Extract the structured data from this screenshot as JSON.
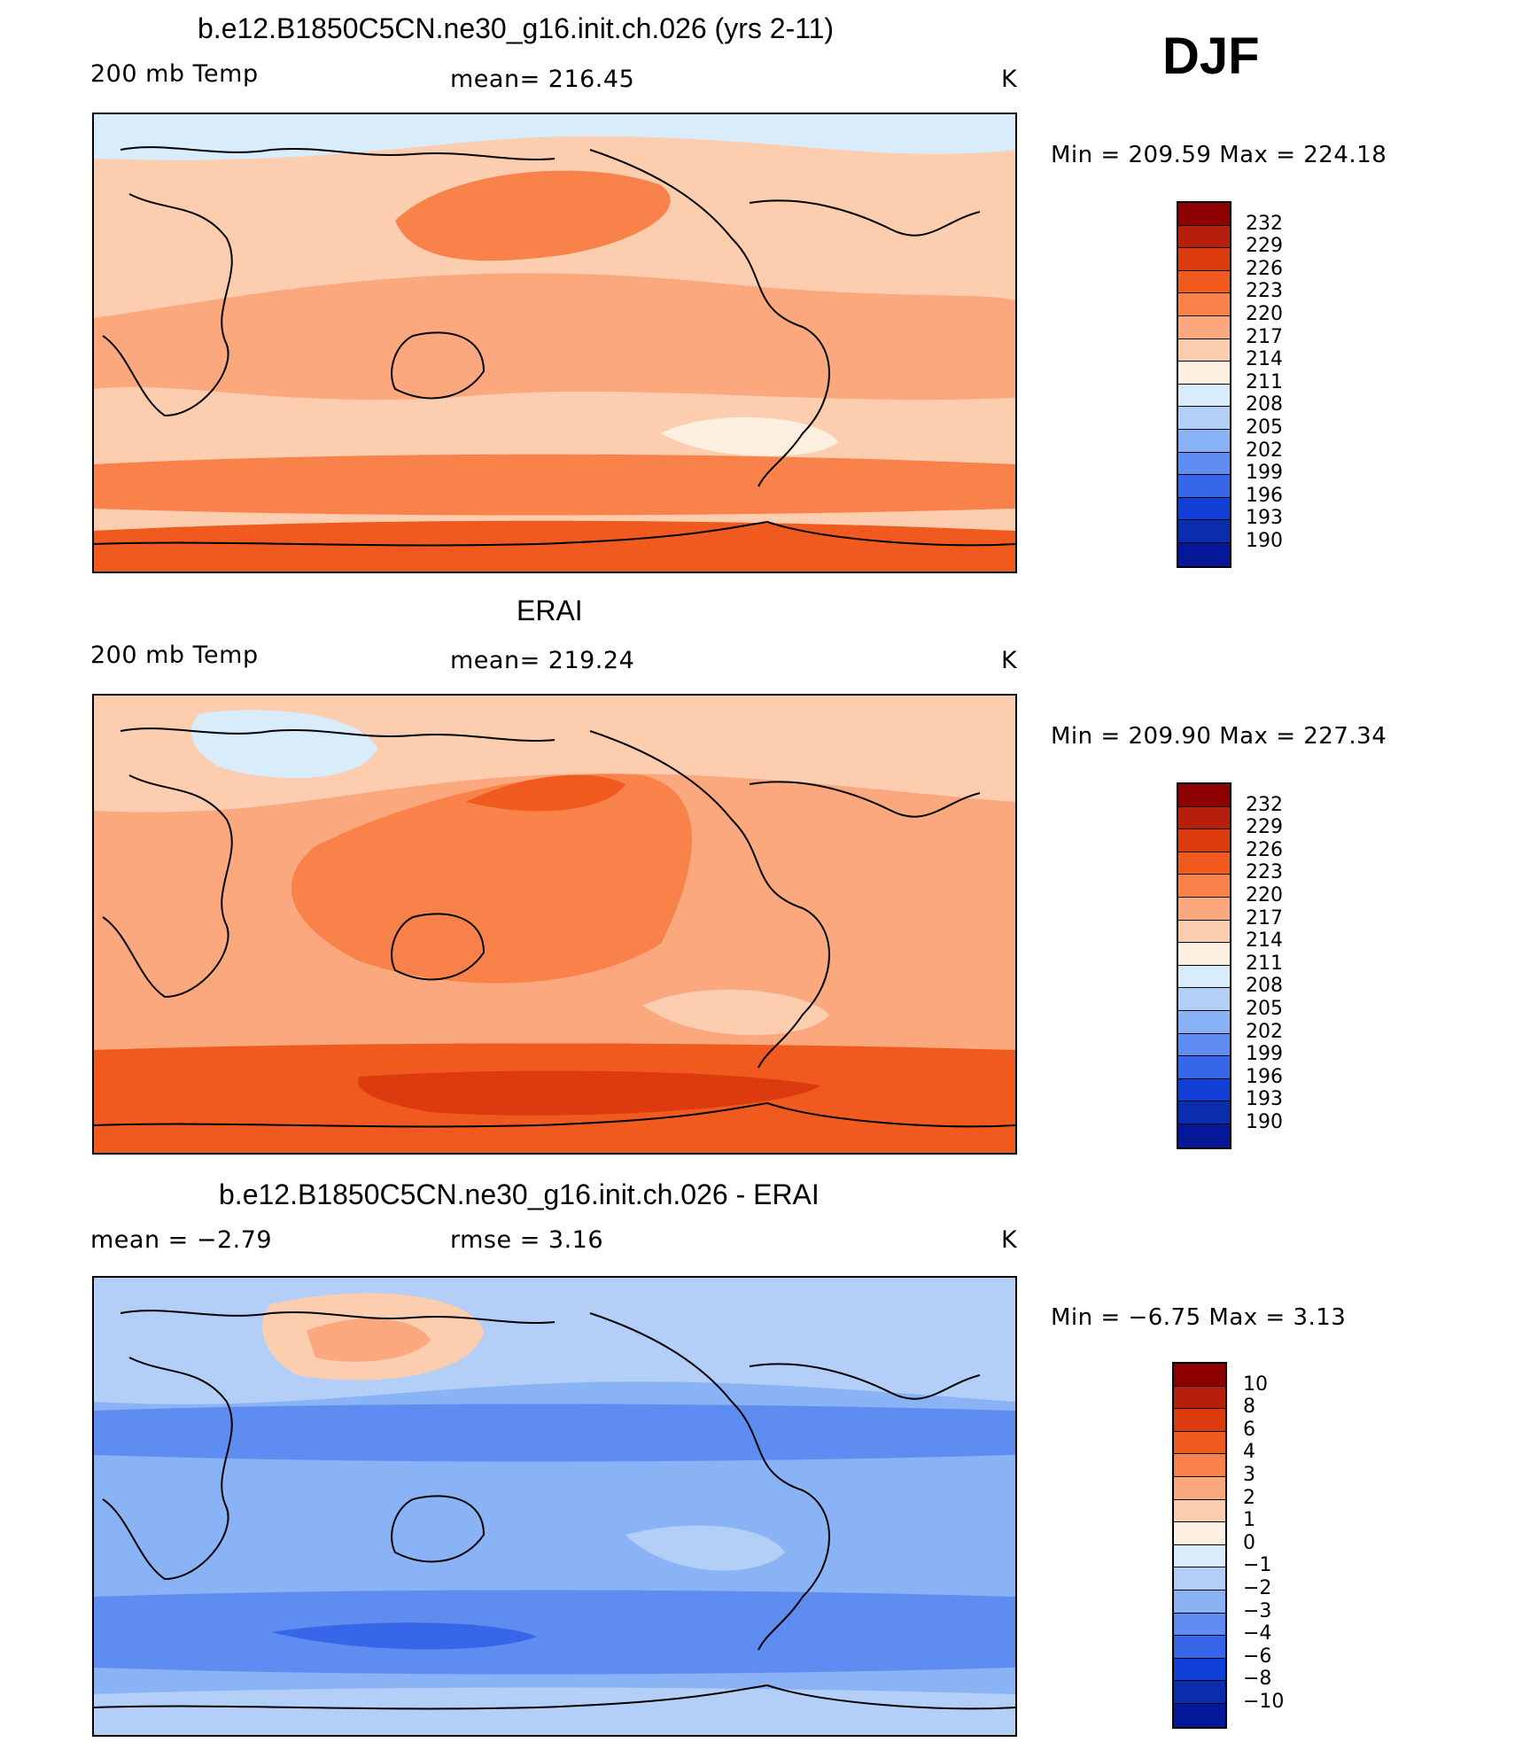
{
  "season": "DJF",
  "panels": [
    {
      "title": "b.e12.B1850C5CN.ne30_g16.init.ch.026 (yrs 2-11)",
      "left_label": "200 mb Temp",
      "center_label": "mean= 216.45",
      "units": "K",
      "minmax": "Min = 209.59 Max = 224.18",
      "colorbar": {
        "labels": [
          "232",
          "229",
          "226",
          "223",
          "220",
          "217",
          "214",
          "211",
          "208",
          "205",
          "202",
          "199",
          "196",
          "193",
          "190"
        ],
        "colors": [
          "#8c0000",
          "#b81e0c",
          "#dc3a0f",
          "#f05a1e",
          "#f9824b",
          "#fba87e",
          "#fdcdb0",
          "#fef0e1",
          "#d8ecfc",
          "#b3cff8",
          "#8ab3f5",
          "#5e8cf0",
          "#3766e8",
          "#1040d8",
          "#0a2db0",
          "#05189a"
        ]
      },
      "map_regions": {
        "base": "#fdcdb0",
        "warm": "#fba87e",
        "hot": "#f9824b",
        "hotter": "#f05a1e",
        "cool": "#fef0e1",
        "cold": "#d8ecfc"
      }
    },
    {
      "title": "ERAI",
      "left_label": "200 mb Temp",
      "center_label": "mean= 219.24",
      "units": "K",
      "minmax": "Min = 209.90 Max = 227.34",
      "colorbar": {
        "labels": [
          "232",
          "229",
          "226",
          "223",
          "220",
          "217",
          "214",
          "211",
          "208",
          "205",
          "202",
          "199",
          "196",
          "193",
          "190"
        ],
        "colors": [
          "#8c0000",
          "#b81e0c",
          "#dc3a0f",
          "#f05a1e",
          "#f9824b",
          "#fba87e",
          "#fdcdb0",
          "#fef0e1",
          "#d8ecfc",
          "#b3cff8",
          "#8ab3f5",
          "#5e8cf0",
          "#3766e8",
          "#1040d8",
          "#0a2db0",
          "#05189a"
        ]
      },
      "map_regions": {
        "base": "#fba87e",
        "warm": "#f9824b",
        "hot": "#f05a1e",
        "hotter": "#dc3a0f",
        "cool": "#fdcdb0",
        "cold": "#d8ecfc"
      }
    },
    {
      "title": "b.e12.B1850C5CN.ne30_g16.init.ch.026 - ERAI",
      "left_label": "mean =  −2.79",
      "center_label": "rmse =    3.16",
      "units": "K",
      "minmax": "Min =  −6.75 Max =    3.13",
      "colorbar": {
        "labels": [
          "10",
          "8",
          "6",
          "4",
          "3",
          "2",
          "1",
          "0",
          "−1",
          "−2",
          "−3",
          "−4",
          "−6",
          "−8",
          "−10"
        ],
        "colors": [
          "#8c0000",
          "#b81e0c",
          "#dc3a0f",
          "#f05a1e",
          "#f9824b",
          "#fba87e",
          "#fdcdb0",
          "#fef0e1",
          "#d8ecfc",
          "#b3cff8",
          "#8ab3f5",
          "#5e8cf0",
          "#3766e8",
          "#1040d8",
          "#0a2db0",
          "#05189a"
        ]
      },
      "map_regions": {
        "base": "#8ab3f5",
        "warm": "#b3cff8",
        "hot": "#fdcdb0",
        "hotter": "#fba87e",
        "cool": "#5e8cf0",
        "cold": "#3766e8"
      }
    }
  ]
}
